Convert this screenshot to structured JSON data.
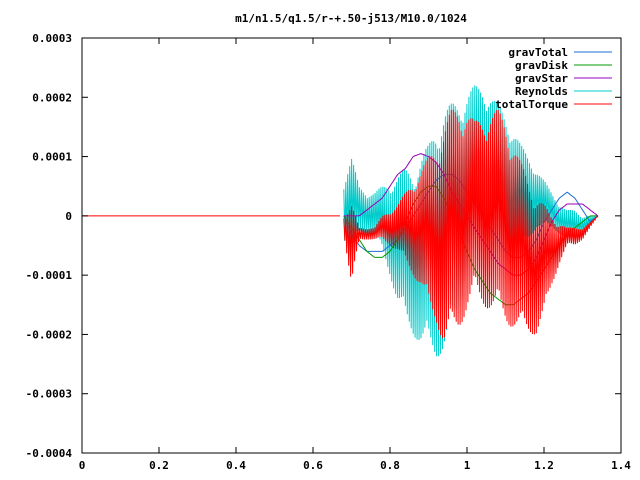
{
  "chart_data": {
    "type": "line",
    "title": "m1/n1.5/q1.5/r-+.50-j513/M10.0/1024",
    "xlabel": "",
    "ylabel": "",
    "xlim": [
      0,
      1.4
    ],
    "ylim": [
      -0.0004,
      0.0003
    ],
    "grid": false,
    "legend_position": "top-right",
    "x_ticks": [
      0,
      0.2,
      0.4,
      0.6,
      0.8,
      1,
      1.2,
      1.4
    ],
    "x_tick_labels": [
      "0",
      "0.2",
      "0.4",
      "0.6",
      "0.8",
      "1",
      "1.2",
      "1.4"
    ],
    "y_ticks": [
      -0.0004,
      -0.0003,
      -0.0002,
      -0.0001,
      0,
      0.0001,
      0.0002,
      0.0003
    ],
    "y_tick_labels": [
      "-0.0004",
      "-0.0003",
      "-0.0002",
      "-0.0001",
      "0",
      "0.0001",
      "0.0002",
      "0.0003"
    ],
    "series": [
      {
        "name": "gravTotal",
        "color": "#1a6fd4",
        "style": "smooth",
        "x": [
          0.68,
          0.7,
          0.72,
          0.74,
          0.76,
          0.78,
          0.8,
          0.82,
          0.84,
          0.86,
          0.88,
          0.9,
          0.92,
          0.94,
          0.96,
          0.98,
          1.0,
          1.02,
          1.04,
          1.06,
          1.08,
          1.1,
          1.12,
          1.14,
          1.16,
          1.18,
          1.2,
          1.22,
          1.24,
          1.26,
          1.28,
          1.3,
          1.32,
          1.34
        ],
        "y": [
          0.0,
          -3e-05,
          -5e-05,
          -6e-05,
          -6e-05,
          -6e-05,
          -5e-05,
          -4e-05,
          -2e-05,
          0.0,
          2e-05,
          4e-05,
          6e-05,
          7e-05,
          7e-05,
          6e-05,
          4e-05,
          2e-05,
          0.0,
          -2e-05,
          -4e-05,
          -6e-05,
          -7e-05,
          -7e-05,
          -6e-05,
          -4e-05,
          -1e-05,
          1e-05,
          3e-05,
          4e-05,
          3e-05,
          1e-05,
          -1e-05,
          0.0
        ]
      },
      {
        "name": "gravDisk",
        "color": "#009900",
        "style": "smooth",
        "x": [
          0.68,
          0.7,
          0.72,
          0.74,
          0.76,
          0.78,
          0.8,
          0.82,
          0.84,
          0.86,
          0.88,
          0.9,
          0.92,
          0.94,
          0.96,
          0.98,
          1.0,
          1.02,
          1.04,
          1.06,
          1.08,
          1.1,
          1.12,
          1.14,
          1.16,
          1.18,
          1.2,
          1.22,
          1.24,
          1.26,
          1.28,
          1.3,
          1.32,
          1.34
        ],
        "y": [
          0.0,
          -2e-05,
          -4e-05,
          -6e-05,
          -7e-05,
          -7e-05,
          -6e-05,
          -4e-05,
          -1e-05,
          2e-05,
          4e-05,
          5e-05,
          5e-05,
          3e-05,
          0.0,
          -3e-05,
          -6e-05,
          -9e-05,
          -0.00011,
          -0.00013,
          -0.00014,
          -0.00015,
          -0.00015,
          -0.00014,
          -0.00013,
          -0.00011,
          -9e-05,
          -7e-05,
          -5e-05,
          -3e-05,
          -2e-05,
          -1e-05,
          0.0,
          0.0
        ]
      },
      {
        "name": "gravStar",
        "color": "#9900bb",
        "style": "smooth",
        "x": [
          0.68,
          0.7,
          0.72,
          0.74,
          0.76,
          0.78,
          0.8,
          0.82,
          0.84,
          0.86,
          0.88,
          0.9,
          0.92,
          0.94,
          0.96,
          0.98,
          1.0,
          1.02,
          1.04,
          1.06,
          1.08,
          1.1,
          1.12,
          1.14,
          1.16,
          1.18,
          1.2,
          1.22,
          1.24,
          1.26,
          1.28,
          1.3,
          1.32,
          1.34
        ],
        "y": [
          0.0,
          0.0,
          0.0,
          1e-05,
          2e-05,
          3e-05,
          5e-05,
          7e-05,
          8e-05,
          0.0001,
          0.000105,
          0.0001,
          9e-05,
          7e-05,
          4e-05,
          2e-05,
          0.0,
          -2e-05,
          -4e-05,
          -6e-05,
          -8e-05,
          -9e-05,
          -0.0001,
          -0.0001,
          -9e-05,
          -7e-05,
          -4e-05,
          -1e-05,
          1e-05,
          2e-05,
          2e-05,
          2e-05,
          1e-05,
          0.0
        ]
      },
      {
        "name": "Reynolds",
        "color": "#00cccc",
        "style": "oscillating",
        "x": [
          0.68,
          0.7,
          0.72,
          0.74,
          0.76,
          0.78,
          0.8,
          0.82,
          0.84,
          0.86,
          0.88,
          0.9,
          0.92,
          0.94,
          0.96,
          0.98,
          1.0,
          1.02,
          1.04,
          1.06,
          1.08,
          1.1,
          1.12,
          1.14,
          1.16,
          1.18,
          1.2,
          1.22,
          1.24,
          1.26,
          1.28,
          1.3,
          1.32,
          1.34
        ],
        "y_low": [
          -4e-05,
          -6e-05,
          -3e-05,
          -3e-05,
          -4e-05,
          -6e-05,
          -0.0001,
          -0.00015,
          -0.00018,
          -0.0002,
          -0.00022,
          -0.00023,
          -0.00024,
          -0.00023,
          -0.0002,
          -0.00016,
          -0.0001,
          -5e-05,
          -3e-05,
          -5e-05,
          -7e-05,
          -8e-05,
          -8e-05,
          -6e-05,
          -4e-05,
          -2e-05,
          -2e-05,
          -2e-05,
          -3e-05,
          -4e-05,
          -4e-05,
          -3e-05,
          -2e-05,
          0.0
        ],
        "y_high": [
          6e-05,
          0.0001,
          5e-05,
          4e-05,
          4e-05,
          5e-05,
          6e-05,
          7e-05,
          8e-05,
          8e-05,
          0.0001,
          0.00012,
          0.00016,
          0.00018,
          0.00019,
          0.0002,
          0.00021,
          0.00022,
          0.00022,
          0.00021,
          0.00019,
          0.00017,
          0.00015,
          0.00012,
          0.0001,
          8e-05,
          6e-05,
          4e-05,
          2e-05,
          1e-05,
          1e-05,
          0.0,
          0.0,
          0.0
        ]
      },
      {
        "name": "totalTorque",
        "color": "#ff0000",
        "style": "oscillating",
        "x": [
          0.68,
          0.7,
          0.72,
          0.74,
          0.76,
          0.78,
          0.8,
          0.82,
          0.84,
          0.86,
          0.88,
          0.9,
          0.92,
          0.94,
          0.96,
          0.98,
          1.0,
          1.02,
          1.04,
          1.06,
          1.08,
          1.1,
          1.12,
          1.14,
          1.16,
          1.18,
          1.2,
          1.22,
          1.24,
          1.26,
          1.28,
          1.3,
          1.32,
          1.34
        ],
        "y_low": [
          -3e-05,
          -0.00012,
          -4e-05,
          -4e-05,
          -4e-05,
          -4e-05,
          -5e-05,
          -6e-05,
          -8e-05,
          -0.0001,
          -0.00012,
          -0.00016,
          -0.00018,
          -0.00022,
          -0.00021,
          -0.00019,
          -0.00016,
          -0.00014,
          -0.00015,
          -0.00016,
          -0.00017,
          -0.00018,
          -0.00019,
          -0.0002,
          -0.0002,
          -0.0002,
          -0.00017,
          -0.00012,
          -8e-05,
          -5e-05,
          -5e-05,
          -4e-05,
          -2e-05,
          0.0
        ],
        "y_high": [
          0.0,
          2e-05,
          -2e-05,
          -2e-05,
          -2e-05,
          0.0,
          1e-05,
          2e-05,
          4e-05,
          6e-05,
          8e-05,
          0.0001,
          0.00012,
          0.00015,
          0.00018,
          0.00019,
          0.00018,
          0.00016,
          0.00017,
          0.00018,
          0.00018,
          0.00016,
          0.00013,
          9e-05,
          6e-05,
          4e-05,
          2e-05,
          0.0,
          -1e-05,
          -2e-05,
          -2e-05,
          -2e-05,
          -1e-05,
          0.0
        ]
      }
    ],
    "flat_segment": {
      "series": "totalTorque",
      "x": [
        0,
        0.67
      ],
      "y": 0
    }
  }
}
